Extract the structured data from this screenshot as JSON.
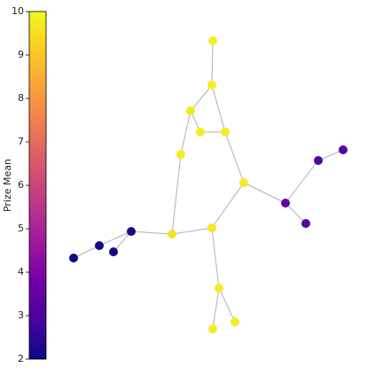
{
  "chart_data": {
    "type": "network",
    "colorbar_label": "Prize Mean",
    "colormap": "plasma",
    "ylim": [
      2,
      10
    ],
    "yticks": [
      2,
      3,
      4,
      5,
      6,
      7,
      8,
      9,
      10
    ],
    "values": [
      9.8,
      9.8,
      9.7,
      9.8,
      9.8,
      9.8,
      9.7,
      9.6,
      9.7,
      2.2,
      2.1,
      2.1,
      2.0,
      3.4,
      3.2,
      3.3,
      3.3,
      9.8,
      9.8,
      9.8
    ],
    "edges": [
      [
        0,
        1
      ],
      [
        1,
        2
      ],
      [
        1,
        4
      ],
      [
        2,
        3
      ],
      [
        2,
        5
      ],
      [
        3,
        4
      ],
      [
        4,
        6
      ],
      [
        5,
        7
      ],
      [
        7,
        8
      ],
      [
        6,
        8
      ],
      [
        6,
        13
      ],
      [
        13,
        14
      ],
      [
        14,
        15
      ],
      [
        13,
        16
      ],
      [
        7,
        9
      ],
      [
        9,
        10
      ],
      [
        10,
        12
      ],
      [
        9,
        11
      ],
      [
        8,
        17
      ],
      [
        17,
        18
      ],
      [
        17,
        19
      ]
    ]
  }
}
